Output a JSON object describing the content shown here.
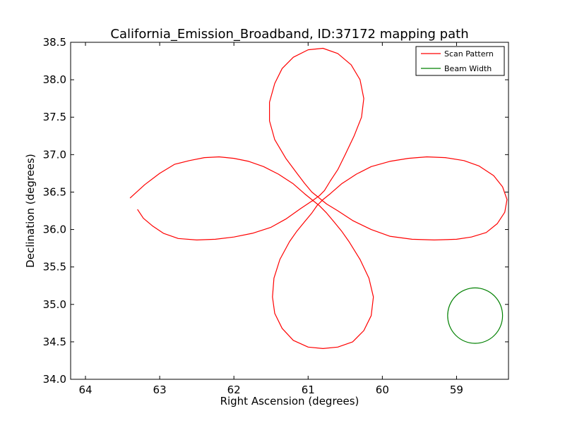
{
  "chart_data": {
    "type": "line",
    "title": "California_Emission_Broadband, ID:37172 mapping path",
    "xlabel": "Right Ascension (degrees)",
    "ylabel": "Declination (degrees)",
    "xlim": [
      64.2,
      58.3
    ],
    "ylim": [
      34.0,
      38.5
    ],
    "x_reversed": true,
    "xticks": [
      64,
      63,
      62,
      61,
      60,
      59
    ],
    "xtick_labels": [
      "64",
      "63",
      "62",
      "61",
      "60",
      "59"
    ],
    "yticks": [
      34.0,
      34.5,
      35.0,
      35.5,
      36.0,
      36.5,
      37.0,
      37.5,
      38.0,
      38.5
    ],
    "ytick_labels": [
      "34.0",
      "34.5",
      "35.0",
      "35.5",
      "36.0",
      "36.5",
      "37.0",
      "37.5",
      "38.0",
      "38.5"
    ],
    "grid": false,
    "legend_position": "top-right",
    "colors": {
      "scan": "#ff0000",
      "beam": "#008000"
    },
    "series": [
      {
        "name": "Scan Pattern",
        "points": [
          [
            63.4,
            36.42
          ],
          [
            63.2,
            36.6
          ],
          [
            63.0,
            36.75
          ],
          [
            62.8,
            36.87
          ],
          [
            62.6,
            36.92
          ],
          [
            62.4,
            36.96
          ],
          [
            62.2,
            36.97
          ],
          [
            62.0,
            36.95
          ],
          [
            61.8,
            36.91
          ],
          [
            61.6,
            36.84
          ],
          [
            61.4,
            36.74
          ],
          [
            61.2,
            36.61
          ],
          [
            61.05,
            36.48
          ],
          [
            60.95,
            36.4
          ],
          [
            60.85,
            36.32
          ],
          [
            60.75,
            36.22
          ],
          [
            60.65,
            36.1
          ],
          [
            60.55,
            35.98
          ],
          [
            60.45,
            35.84
          ],
          [
            60.3,
            35.6
          ],
          [
            60.18,
            35.35
          ],
          [
            60.12,
            35.1
          ],
          [
            60.15,
            34.85
          ],
          [
            60.25,
            34.65
          ],
          [
            60.4,
            34.5
          ],
          [
            60.6,
            34.43
          ],
          [
            60.8,
            34.41
          ],
          [
            61.0,
            34.43
          ],
          [
            61.2,
            34.52
          ],
          [
            61.35,
            34.68
          ],
          [
            61.45,
            34.88
          ],
          [
            61.48,
            35.1
          ],
          [
            61.46,
            35.35
          ],
          [
            61.38,
            35.6
          ],
          [
            61.25,
            35.84
          ],
          [
            61.15,
            35.98
          ],
          [
            61.05,
            36.1
          ],
          [
            60.95,
            36.22
          ],
          [
            60.88,
            36.32
          ],
          [
            60.8,
            36.4
          ],
          [
            60.7,
            36.48
          ],
          [
            60.55,
            36.61
          ],
          [
            60.35,
            36.74
          ],
          [
            60.15,
            36.84
          ],
          [
            59.9,
            36.91
          ],
          [
            59.65,
            36.95
          ],
          [
            59.4,
            36.97
          ],
          [
            59.15,
            36.96
          ],
          [
            58.9,
            36.92
          ],
          [
            58.7,
            36.85
          ],
          [
            58.5,
            36.72
          ],
          [
            58.38,
            36.57
          ],
          [
            58.32,
            36.4
          ],
          [
            58.35,
            36.23
          ],
          [
            58.45,
            36.08
          ],
          [
            58.6,
            35.96
          ],
          [
            58.8,
            35.9
          ],
          [
            59.0,
            35.87
          ],
          [
            59.3,
            35.86
          ],
          [
            59.6,
            35.87
          ],
          [
            59.9,
            35.91
          ],
          [
            60.15,
            36.0
          ],
          [
            60.4,
            36.12
          ],
          [
            60.6,
            36.25
          ],
          [
            60.75,
            36.34
          ],
          [
            60.85,
            36.42
          ],
          [
            60.95,
            36.5
          ],
          [
            61.05,
            36.62
          ],
          [
            61.15,
            36.75
          ],
          [
            61.3,
            36.95
          ],
          [
            61.45,
            37.2
          ],
          [
            61.52,
            37.45
          ],
          [
            61.52,
            37.7
          ],
          [
            61.45,
            37.95
          ],
          [
            61.35,
            38.15
          ],
          [
            61.2,
            38.3
          ],
          [
            61.0,
            38.4
          ],
          [
            60.8,
            38.42
          ],
          [
            60.6,
            38.35
          ],
          [
            60.42,
            38.2
          ],
          [
            60.3,
            38.0
          ],
          [
            60.25,
            37.75
          ],
          [
            60.28,
            37.5
          ],
          [
            60.38,
            37.25
          ],
          [
            60.5,
            37.0
          ],
          [
            60.6,
            36.8
          ],
          [
            60.7,
            36.65
          ],
          [
            60.78,
            36.52
          ],
          [
            60.85,
            36.45
          ],
          [
            60.95,
            36.38
          ],
          [
            61.1,
            36.28
          ],
          [
            61.3,
            36.14
          ],
          [
            61.5,
            36.03
          ],
          [
            61.75,
            35.95
          ],
          [
            62.0,
            35.9
          ],
          [
            62.25,
            35.87
          ],
          [
            62.5,
            35.86
          ],
          [
            62.75,
            35.88
          ],
          [
            62.95,
            35.95
          ],
          [
            63.1,
            36.05
          ],
          [
            63.22,
            36.15
          ],
          [
            63.3,
            36.27
          ]
        ]
      },
      {
        "name": "Beam Width",
        "center": [
          58.75,
          34.85
        ],
        "radius": 0.37
      }
    ]
  }
}
